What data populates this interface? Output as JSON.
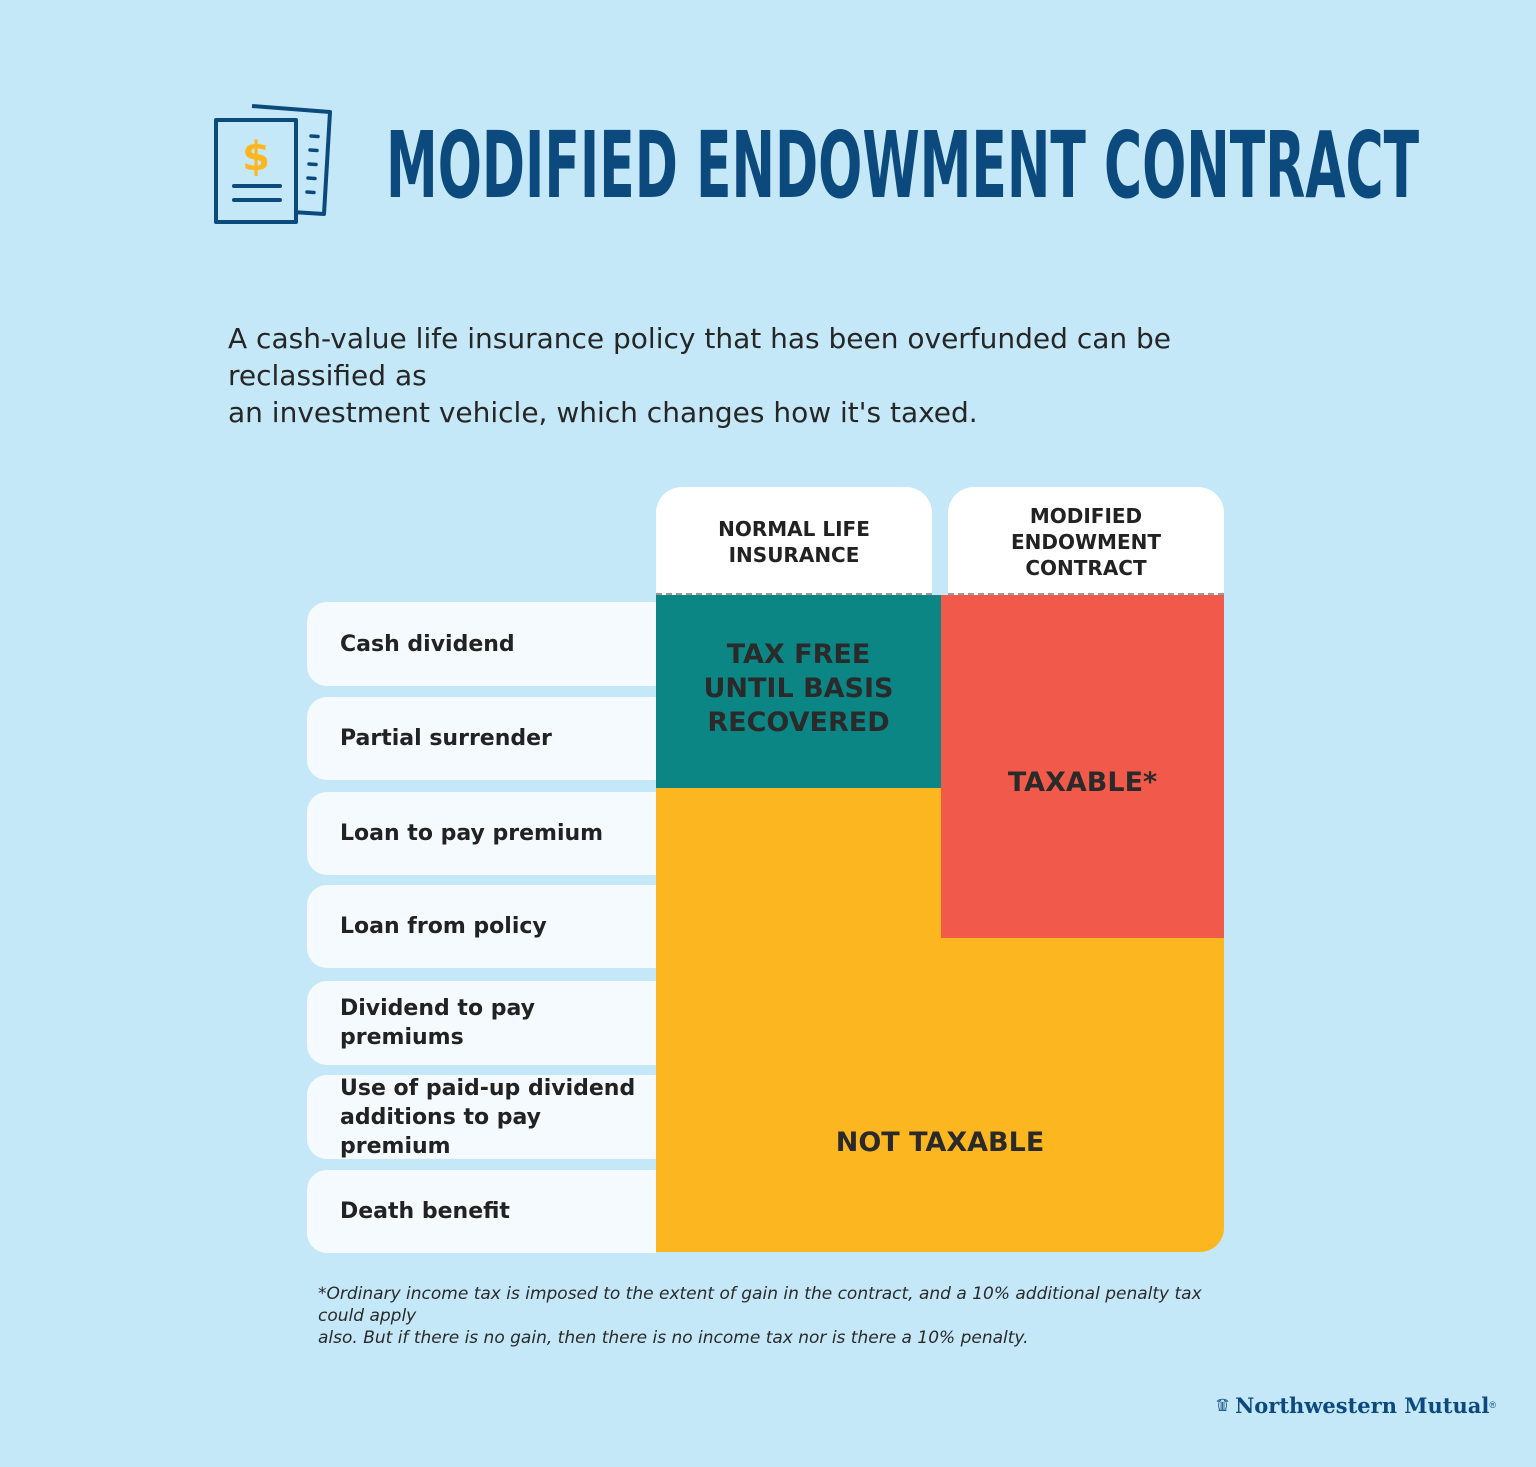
{
  "header": {
    "title": "MODIFIED ENDOWMENT CONTRACT",
    "icon": "document-dollar-icon"
  },
  "intro_line1": "A cash-value life insurance policy that has been overfunded can be reclassified as",
  "intro_line2": "an investment vehicle, which changes how it's taxed.",
  "columns": [
    {
      "line1": "NORMAL LIFE",
      "line2": "INSURANCE"
    },
    {
      "line1": "MODIFIED",
      "line2": "ENDOWMENT",
      "line3": "CONTRACT"
    }
  ],
  "rows": [
    {
      "line1": "Cash dividend"
    },
    {
      "line1": "Partial surrender"
    },
    {
      "line1": "Loan to pay premium"
    },
    {
      "line1": "Loan from policy"
    },
    {
      "line1": "Dividend to pay premiums"
    },
    {
      "line1": "Use of paid-up dividend",
      "line2": "additions to pay premium"
    },
    {
      "line1": "Death benefit"
    }
  ],
  "regions": {
    "tax_free": {
      "line1": "TAX FREE",
      "line2": "UNTIL BASIS",
      "line3": "RECOVERED",
      "color": "#0c8585"
    },
    "taxable": {
      "text": "TAXABLE*",
      "color": "#f15a4a"
    },
    "not_taxable": {
      "text": "NOT TAXABLE",
      "color": "#fcb61f"
    }
  },
  "footnote_line1": "*Ordinary income tax is imposed to the extent of gain in the contract, and a 10% additional penalty tax could apply",
  "footnote_line2": "also. But if there is no gain, then there is no income tax nor is there a 10% penalty.",
  "logo": {
    "text": "Northwestern Mutual",
    "mark": "pillar-capital-icon"
  },
  "colors": {
    "background": "#c4e8f8",
    "title": "#0c4a7e",
    "accent_gold": "#fcb61f"
  }
}
